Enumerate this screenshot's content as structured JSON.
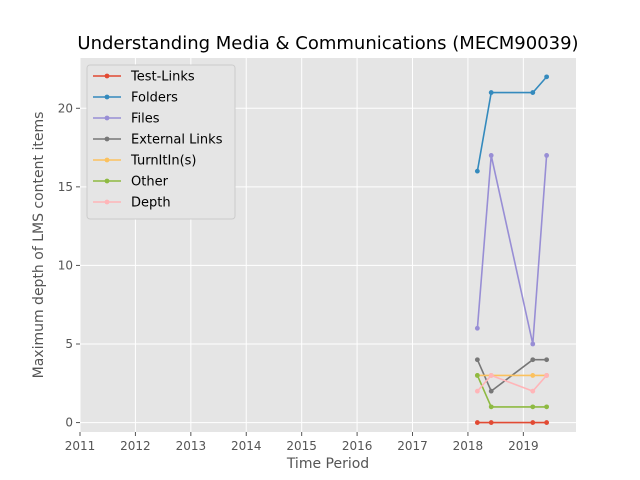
{
  "chart_data": {
    "type": "line",
    "title": "Understanding Media & Communications (MECM90039)",
    "xlabel": "Time Period",
    "ylabel": "Maximum depth of LMS content items",
    "xlim": [
      2011.0,
      2019.95
    ],
    "ylim": [
      -0.6,
      23.2
    ],
    "x_ticks": [
      2011,
      2012,
      2013,
      2014,
      2015,
      2016,
      2017,
      2018,
      2019
    ],
    "x_tick_labels": [
      "2011",
      "2012",
      "2013",
      "2014",
      "2015",
      "2016",
      "2017",
      "2018",
      "2019"
    ],
    "y_ticks": [
      0,
      5,
      10,
      15,
      20
    ],
    "y_tick_labels": [
      "0",
      "5",
      "10",
      "15",
      "20"
    ],
    "grid": true,
    "legend_position": "upper-left",
    "series": [
      {
        "name": "Test-Links",
        "color": "#E24A33",
        "x": [
          2018.17,
          2018.42,
          2019.17,
          2019.42
        ],
        "y": [
          0,
          0,
          0,
          0
        ]
      },
      {
        "name": "Folders",
        "color": "#348ABD",
        "x": [
          2018.17,
          2018.42,
          2019.17,
          2019.42
        ],
        "y": [
          16,
          21,
          21,
          22
        ]
      },
      {
        "name": "Files",
        "color": "#988ED5",
        "x": [
          2018.17,
          2018.42,
          2019.17,
          2019.42
        ],
        "y": [
          6,
          17,
          5,
          17
        ]
      },
      {
        "name": "External Links",
        "color": "#777777",
        "x": [
          2018.17,
          2018.42,
          2019.17,
          2019.42
        ],
        "y": [
          4,
          2,
          4,
          4
        ]
      },
      {
        "name": "TurnItIn(s)",
        "color": "#FBC15E",
        "x": [
          2018.17,
          2018.42,
          2019.17,
          2019.42
        ],
        "y": [
          3,
          3,
          3,
          3
        ]
      },
      {
        "name": "Other",
        "color": "#8EBA42",
        "x": [
          2018.17,
          2018.42,
          2019.17,
          2019.42
        ],
        "y": [
          3,
          1,
          1,
          1
        ]
      },
      {
        "name": "Depth",
        "color": "#FFB5B8",
        "x": [
          2018.17,
          2018.42,
          2019.17,
          2019.42
        ],
        "y": [
          2,
          3,
          2,
          3
        ]
      }
    ]
  }
}
